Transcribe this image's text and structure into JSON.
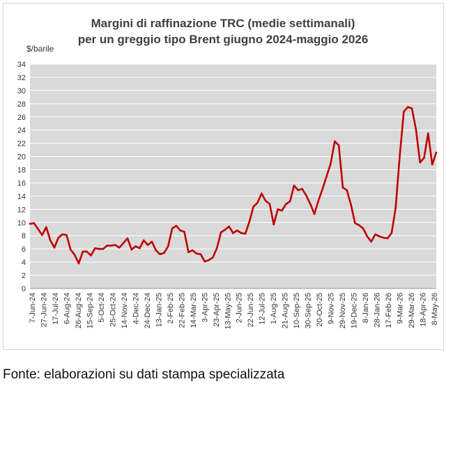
{
  "chart_data": {
    "type": "line",
    "title": "Margini di raffinazione TRC (medie settimanali)",
    "subtitle": "per un greggio tipo Brent giugno 2024-maggio 2026",
    "ylabel": "$/barile",
    "xlabel": "",
    "ylim": [
      0,
      34
    ],
    "yticks": [
      0,
      2,
      4,
      6,
      8,
      10,
      12,
      14,
      16,
      18,
      20,
      22,
      24,
      26,
      28,
      30,
      32,
      34
    ],
    "grid": true,
    "background": "#d9d9d9",
    "line_color": "#c00000",
    "x_tick_labels": [
      "7-Jun-24",
      "27-Jun-24",
      "17-Jul-24",
      "6-Aug-24",
      "26-Aug-24",
      "15-Sep-24",
      "5-Oct-24",
      "25-Oct-24",
      "14-Nov-24",
      "4-Dec-24",
      "24-Dec-24",
      "13-Jan-25",
      "2-Feb-25",
      "22-Feb-25",
      "14-Mar-25",
      "3-Apr-25",
      "23-Apr-25",
      "13-May-25",
      "2-Jun-25",
      "22-Jun-25",
      "12-Jul-25",
      "1-Aug-25",
      "21-Aug-25",
      "10-Sep-25",
      "30-Sep-25",
      "20-Oct-25",
      "9-Nov-25",
      "29-Nov-25",
      "19-Dec-25",
      "8-Jan-26",
      "28-Jan-26",
      "17-Feb-26",
      "9-Mar-26",
      "29-Mar-26",
      "18-Apr-26",
      "8-May-26"
    ],
    "series": [
      {
        "values": [
          9.8,
          9.9,
          9.0,
          8.1,
          9.3,
          7.3,
          6.2,
          7.7,
          8.2,
          8.1,
          5.9,
          5.1,
          3.8,
          5.6,
          5.6,
          5.0,
          6.1,
          6.0,
          6.0,
          6.5,
          6.5,
          6.6,
          6.2,
          6.9,
          7.6,
          5.9,
          6.4,
          6.1,
          7.3,
          6.6,
          7.1,
          5.8,
          5.2,
          5.4,
          6.4,
          9.1,
          9.5,
          8.8,
          8.6,
          5.5,
          5.8,
          5.3,
          5.2,
          4.1,
          4.3,
          4.7,
          6.1,
          8.5,
          8.9,
          9.4,
          8.4,
          8.8,
          8.4,
          8.3,
          10.1,
          12.4,
          13.0,
          14.4,
          13.3,
          12.8,
          9.7,
          12.0,
          11.8,
          12.8,
          13.2,
          15.6,
          14.9,
          15.1,
          14.1,
          12.8,
          11.3,
          13.3,
          15.1,
          17.0,
          18.9,
          22.3,
          21.7,
          15.3,
          14.9,
          12.7,
          9.9,
          9.6,
          9.1,
          7.9,
          7.1,
          8.2,
          7.9,
          7.7,
          7.6,
          8.4,
          12.2,
          20.0,
          26.8,
          27.5,
          27.3,
          24.1,
          19.1,
          19.8,
          23.5,
          18.8,
          20.6
        ]
      }
    ]
  },
  "footer": {
    "source": "Fonte: elaborazioni su dati stampa specializzata"
  }
}
